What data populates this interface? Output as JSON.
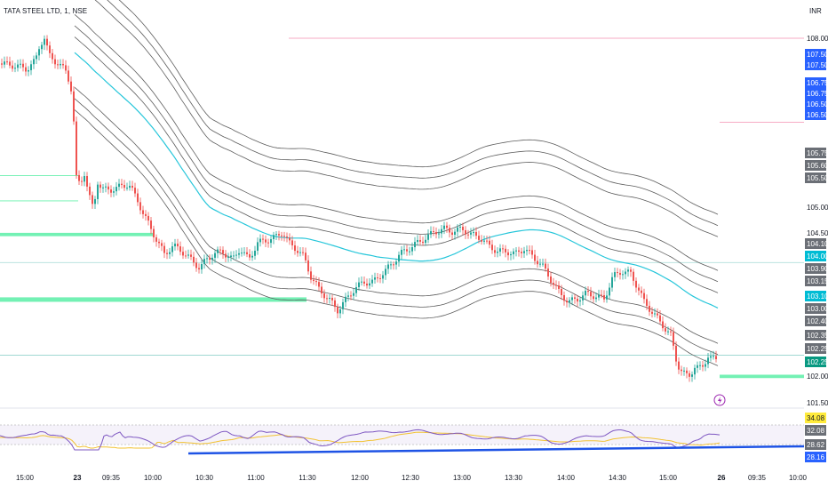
{
  "header": {
    "title": "TATA STEEL LTD, 1, NSE",
    "currency": "INR"
  },
  "colors": {
    "up": "#26a69a",
    "down": "#ef5350",
    "band": "#5d5d5d",
    "vwap": "#26c6da",
    "rsi": "#7e57c2",
    "rsi_ma": "#f2c232",
    "trendline": "#1e53e5",
    "zone": "#00e676",
    "resistance": "#f48fb1",
    "badge_blue": "#2962ff",
    "badge_gray": "#6b6f76",
    "badge_teal": "#089981",
    "badge_cyan": "#00bcd4",
    "badge_yellow": "#ffeb3b"
  },
  "chart_data": {
    "type": "candlestick",
    "symbol": "TATA STEEL LTD",
    "interval": "1",
    "exchange": "NSE",
    "x_ticks": [
      "15:00",
      "23",
      "09:35",
      "10:00",
      "10:30",
      "11:00",
      "11:30",
      "12:00",
      "12:30",
      "13:00",
      "13:30",
      "14:00",
      "14:30",
      "15:00",
      "26",
      "09:35",
      "10:00"
    ],
    "y_ticks": [
      108.0,
      105.0,
      104.5,
      102.0,
      101.5
    ],
    "ylim": [
      101.4,
      108.3
    ],
    "price_path": [
      [
        0,
        107.55
      ],
      [
        20,
        107.5
      ],
      [
        30,
        107.45
      ],
      [
        40,
        107.6
      ],
      [
        45,
        107.9
      ],
      [
        50,
        108.0
      ],
      [
        55,
        107.7
      ],
      [
        65,
        107.55
      ],
      [
        75,
        107.4
      ],
      [
        80,
        107.1
      ],
      [
        83,
        106.5
      ],
      [
        85,
        106.0
      ],
      [
        86,
        105.5
      ],
      [
        90,
        105.4
      ],
      [
        95,
        105.6
      ],
      [
        100,
        105.2
      ],
      [
        105,
        104.95
      ],
      [
        110,
        105.45
      ],
      [
        115,
        105.3
      ],
      [
        125,
        105.3
      ],
      [
        135,
        105.35
      ],
      [
        145,
        105.4
      ],
      [
        150,
        105.25
      ],
      [
        155,
        105.1
      ],
      [
        162,
        104.85
      ],
      [
        170,
        104.6
      ],
      [
        178,
        104.35
      ],
      [
        185,
        104.15
      ],
      [
        195,
        104.3
      ],
      [
        205,
        104.2
      ],
      [
        215,
        104.05
      ],
      [
        225,
        103.9
      ],
      [
        232,
        104.05
      ],
      [
        240,
        104.15
      ],
      [
        250,
        104.2
      ],
      [
        262,
        104.05
      ],
      [
        270,
        104.25
      ],
      [
        280,
        104.05
      ],
      [
        290,
        104.35
      ],
      [
        300,
        104.4
      ],
      [
        310,
        104.45
      ],
      [
        318,
        104.55
      ],
      [
        325,
        104.35
      ],
      [
        333,
        104.25
      ],
      [
        342,
        104.1
      ],
      [
        350,
        103.75
      ],
      [
        360,
        103.5
      ],
      [
        370,
        103.35
      ],
      [
        380,
        103.15
      ],
      [
        390,
        103.35
      ],
      [
        400,
        103.55
      ],
      [
        410,
        103.65
      ],
      [
        420,
        103.65
      ],
      [
        430,
        103.8
      ],
      [
        440,
        103.95
      ],
      [
        450,
        104.15
      ],
      [
        460,
        104.25
      ],
      [
        470,
        104.35
      ],
      [
        480,
        104.45
      ],
      [
        490,
        104.55
      ],
      [
        500,
        104.6
      ],
      [
        510,
        104.55
      ],
      [
        520,
        104.6
      ],
      [
        530,
        104.5
      ],
      [
        540,
        104.45
      ],
      [
        550,
        104.3
      ],
      [
        560,
        104.2
      ],
      [
        570,
        104.2
      ],
      [
        580,
        104.15
      ],
      [
        590,
        104.25
      ],
      [
        600,
        104.1
      ],
      [
        610,
        103.95
      ],
      [
        620,
        103.7
      ],
      [
        630,
        103.45
      ],
      [
        640,
        103.3
      ],
      [
        650,
        103.35
      ],
      [
        660,
        103.45
      ],
      [
        670,
        103.4
      ],
      [
        680,
        103.35
      ],
      [
        690,
        103.75
      ],
      [
        700,
        103.85
      ],
      [
        710,
        103.8
      ],
      [
        718,
        103.55
      ],
      [
        725,
        103.3
      ],
      [
        735,
        103.1
      ],
      [
        745,
        102.9
      ],
      [
        755,
        102.7
      ],
      [
        762,
        102.2
      ],
      [
        768,
        102.05
      ],
      [
        775,
        101.95
      ],
      [
        782,
        102.15
      ],
      [
        790,
        102.1
      ],
      [
        797,
        102.35
      ],
      [
        805,
        102.25
      ],
      [
        810,
        102.25
      ]
    ],
    "level_lines": [
      108.0,
      106.5,
      105.55,
      105.1,
      104.0,
      102.35
    ],
    "support_zones": [
      [
        104.53,
        104.47
      ],
      [
        103.38,
        103.3
      ],
      [
        102.0,
        101.94
      ]
    ],
    "price_labels": [
      {
        "value": "108.00",
        "style": "plain"
      },
      {
        "value": "107.50",
        "style": "blue"
      },
      {
        "value": "107.50",
        "style": "blue"
      },
      {
        "value": "106.75",
        "style": "blue"
      },
      {
        "value": "106.75",
        "style": "blue"
      },
      {
        "value": "106.50",
        "style": "blue"
      },
      {
        "value": "106.50",
        "style": "blue"
      },
      {
        "value": "105.75",
        "style": "gray"
      },
      {
        "value": "105.60",
        "style": "gray"
      },
      {
        "value": "105.50",
        "style": "gray"
      },
      {
        "value": "105.00",
        "style": "plain"
      },
      {
        "value": "104.50",
        "style": "plain"
      },
      {
        "value": "104.10",
        "style": "gray"
      },
      {
        "value": "104.00",
        "style": "cyan"
      },
      {
        "value": "103.90",
        "style": "gray"
      },
      {
        "value": "103.15",
        "style": "gray"
      },
      {
        "value": "103.10",
        "style": "cyan"
      },
      {
        "value": "103.00",
        "style": "gray"
      },
      {
        "value": "102.40",
        "style": "gray"
      },
      {
        "value": "102.35",
        "style": "gray"
      },
      {
        "value": "102.25",
        "style": "gray"
      },
      {
        "value": "102.25",
        "style": "teal"
      },
      {
        "value": "102.00",
        "style": "plain"
      },
      {
        "value": "101.50",
        "style": "plain"
      }
    ],
    "rsi_labels": [
      {
        "value": "34.08",
        "style": "yellow"
      },
      {
        "value": "32.08",
        "style": "gray"
      },
      {
        "value": "28.62",
        "style": "gray"
      },
      {
        "value": "28.16",
        "style": "blue"
      }
    ]
  }
}
